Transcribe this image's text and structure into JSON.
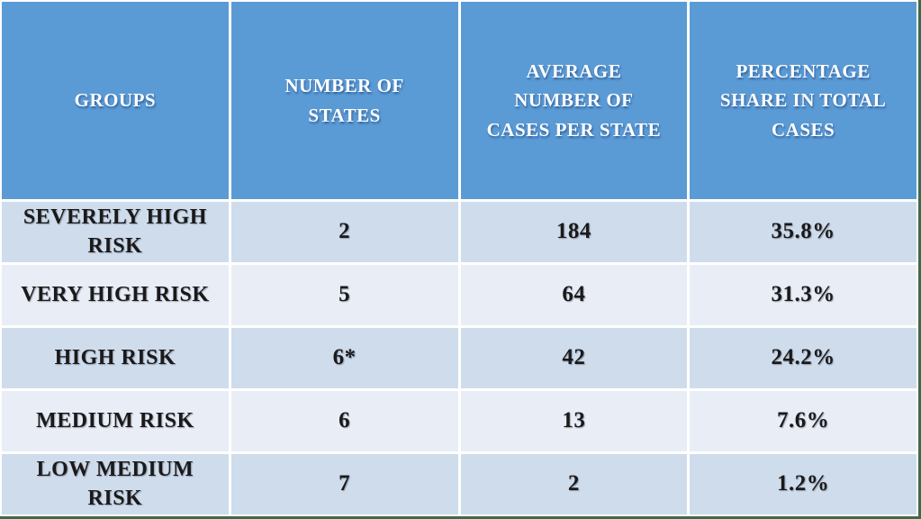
{
  "chart_data": {
    "type": "table",
    "columns": [
      "GROUPS",
      "NUMBER OF STATES",
      "AVERAGE NUMBER OF CASES PER STATE",
      "PERCENTAGE SHARE IN TOTAL CASES"
    ],
    "rows": [
      [
        "SEVERELY HIGH RISK",
        "2",
        "184",
        "35.8%"
      ],
      [
        "VERY HIGH RISK",
        "5",
        "64",
        "31.3%"
      ],
      [
        "HIGH RISK",
        "6*",
        "42",
        "24.2%"
      ],
      [
        "MEDIUM RISK",
        "6",
        "13",
        "7.6%"
      ],
      [
        "LOW MEDIUM RISK",
        "7",
        "2",
        "1.2%"
      ]
    ],
    "footnote_marker_cell": "6*",
    "layout": {
      "header_position": "top",
      "grid": "white gridlines, alternating row shading",
      "text_alignment": "center"
    }
  },
  "colors": {
    "header_bg": "#5B9BD5",
    "row_odd_bg": "#CFDCEC",
    "row_even_bg": "#E9EDF6",
    "grid_line": "#FFFFFF",
    "frame_border": "#3D6B4A",
    "header_text": "#FFFFFF",
    "body_text": "#1A1A1A"
  }
}
